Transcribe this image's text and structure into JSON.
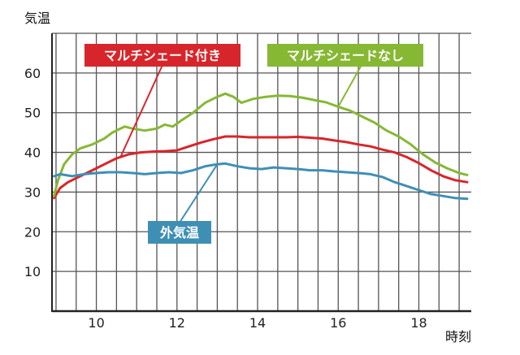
{
  "chart_data": {
    "type": "line",
    "title": "",
    "ylabel": "気温",
    "xlabel": "時刻",
    "xlim": [
      8.9,
      19.3
    ],
    "ylim": [
      0,
      70
    ],
    "xticks": [
      10,
      12,
      14,
      16,
      18
    ],
    "yticks": [
      10,
      20,
      30,
      40,
      50,
      60
    ],
    "grid": true,
    "legend": "callout labels inside plot",
    "series": [
      {
        "name": "マルチシェード付き",
        "color": "#d7262b",
        "x": [
          8.95,
          9.1,
          9.3,
          9.6,
          9.9,
          10.2,
          10.5,
          10.8,
          11.1,
          11.4,
          11.7,
          12.0,
          12.3,
          12.6,
          12.9,
          13.2,
          13.5,
          13.8,
          14.1,
          14.4,
          14.7,
          15.0,
          15.3,
          15.6,
          15.9,
          16.2,
          16.5,
          16.8,
          17.1,
          17.4,
          17.7,
          18.0,
          18.3,
          18.6,
          18.9,
          19.2
        ],
        "values": [
          28.5,
          31.0,
          32.5,
          34.0,
          35.5,
          37.0,
          38.5,
          39.5,
          40.0,
          40.2,
          40.3,
          40.5,
          41.5,
          42.5,
          43.3,
          44.0,
          44.0,
          43.8,
          43.8,
          43.8,
          43.8,
          43.9,
          43.7,
          43.5,
          43.0,
          42.6,
          42.0,
          41.5,
          40.7,
          40.0,
          38.8,
          37.3,
          35.5,
          34.0,
          33.0,
          32.5
        ]
      },
      {
        "name": "マルチシェードなし",
        "color": "#86b834",
        "x": [
          8.95,
          9.05,
          9.2,
          9.4,
          9.6,
          9.9,
          10.2,
          10.4,
          10.7,
          10.9,
          11.2,
          11.5,
          11.7,
          11.9,
          12.1,
          12.4,
          12.7,
          13.0,
          13.2,
          13.4,
          13.6,
          13.9,
          14.2,
          14.5,
          14.8,
          15.1,
          15.4,
          15.7,
          16.0,
          16.3,
          16.6,
          16.9,
          17.2,
          17.5,
          17.8,
          18.1,
          18.4,
          18.7,
          19.0,
          19.2
        ],
        "values": [
          29.0,
          33.0,
          37.0,
          39.5,
          41.0,
          42.0,
          43.5,
          45.0,
          46.5,
          46.0,
          45.5,
          46.0,
          47.0,
          46.5,
          48.0,
          50.0,
          52.5,
          54.0,
          54.8,
          54.0,
          52.5,
          53.5,
          54.0,
          54.3,
          54.2,
          53.8,
          53.2,
          52.6,
          51.5,
          50.5,
          49.0,
          47.5,
          45.5,
          44.0,
          42.0,
          39.5,
          37.5,
          36.0,
          34.8,
          34.3
        ]
      },
      {
        "name": "外気温",
        "color": "#3f8fb5",
        "x": [
          8.95,
          9.1,
          9.4,
          9.7,
          10.0,
          10.3,
          10.6,
          10.9,
          11.2,
          11.5,
          11.8,
          12.1,
          12.4,
          12.7,
          13.0,
          13.2,
          13.5,
          13.8,
          14.1,
          14.4,
          14.7,
          15.0,
          15.3,
          15.6,
          15.9,
          16.2,
          16.5,
          16.8,
          17.1,
          17.4,
          17.7,
          18.0,
          18.3,
          18.6,
          18.9,
          19.2
        ],
        "values": [
          34.0,
          34.5,
          34.0,
          34.5,
          34.8,
          35.0,
          35.0,
          34.8,
          34.5,
          34.8,
          35.0,
          34.8,
          35.5,
          36.5,
          37.0,
          37.2,
          36.5,
          36.0,
          35.8,
          36.2,
          36.0,
          35.8,
          35.5,
          35.5,
          35.2,
          35.0,
          34.8,
          34.5,
          33.8,
          32.5,
          31.5,
          30.5,
          29.5,
          29.0,
          28.5,
          28.3
        ]
      }
    ],
    "annotations": [
      {
        "text": "マルチシェード付き",
        "series": 0,
        "at_x": 10.6
      },
      {
        "text": "マルチシェードなし",
        "series": 1,
        "at_x": 16.0
      },
      {
        "text": "外気温",
        "series": 2,
        "at_x": 13.0
      }
    ]
  }
}
